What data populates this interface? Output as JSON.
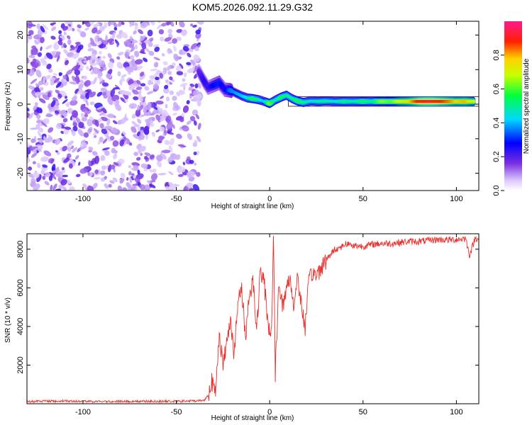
{
  "title": "KOM5.2026.092.11.29.G32",
  "colors": {
    "snr_line": "#e8302c",
    "signal_band_edge": "#111111",
    "noise_purple": "#7b2fe0"
  },
  "chart_data": [
    {
      "type": "heatmap",
      "title": "KOM5.2026.092.11.29.G32",
      "xlabel": "Height of straight line (km)",
      "ylabel": "Frequency (Hz)",
      "xlim": [
        -130,
        112
      ],
      "ylim": [
        -25,
        24
      ],
      "xticks": [
        -100,
        -50,
        0,
        50,
        100
      ],
      "yticks": [
        -20,
        -10,
        0,
        10,
        20
      ],
      "colorbar": {
        "label": "Normalized spectral amplitude",
        "ticks": [
          "0.0",
          "0.2",
          "0.4",
          "0.6",
          "0.8"
        ],
        "range": [
          0,
          1
        ],
        "colormap": "rainbow (violet-blue-cyan-green-yellow-red-magenta)"
      },
      "noise_region": {
        "x_range": [
          -130,
          -37
        ],
        "freq_range": [
          -25,
          24
        ],
        "level": 0.1
      },
      "ridge": [
        [
          -38,
          9.5,
          0.18
        ],
        [
          -35,
          6.5,
          0.25
        ],
        [
          -33,
          4.8,
          0.22
        ],
        [
          -30,
          5.5,
          0.28
        ],
        [
          -27,
          6.2,
          0.3
        ],
        [
          -24,
          4.2,
          0.25
        ],
        [
          -21,
          4.0,
          0.35
        ],
        [
          -18,
          3.2,
          0.38
        ],
        [
          -15,
          2.4,
          0.4
        ],
        [
          -12,
          1.8,
          0.45
        ],
        [
          -9,
          1.6,
          0.55
        ],
        [
          -6,
          1.3,
          0.5
        ],
        [
          -3,
          0.8,
          0.4
        ],
        [
          0,
          0.2,
          0.65
        ],
        [
          3,
          1.2,
          0.45
        ],
        [
          6,
          2.0,
          0.55
        ],
        [
          9,
          2.6,
          0.5
        ],
        [
          12,
          1.6,
          0.48
        ],
        [
          15,
          0.9,
          0.55
        ],
        [
          18,
          0.5,
          0.52
        ],
        [
          22,
          0.9,
          0.45
        ],
        [
          26,
          0.8,
          0.48
        ],
        [
          30,
          0.9,
          0.5
        ],
        [
          35,
          0.8,
          0.45
        ],
        [
          40,
          0.8,
          0.52
        ],
        [
          45,
          0.8,
          0.48
        ],
        [
          50,
          0.8,
          0.55
        ],
        [
          55,
          0.8,
          0.5
        ],
        [
          60,
          0.8,
          0.65
        ],
        [
          65,
          0.8,
          0.6
        ],
        [
          70,
          0.8,
          0.72
        ],
        [
          75,
          0.8,
          0.78
        ],
        [
          80,
          0.8,
          0.9
        ],
        [
          85,
          0.8,
          0.95
        ],
        [
          90,
          0.8,
          0.9
        ],
        [
          95,
          0.8,
          0.85
        ],
        [
          100,
          0.8,
          0.78
        ],
        [
          105,
          0.8,
          0.8
        ],
        [
          110,
          0.8,
          0.7
        ]
      ]
    },
    {
      "type": "line",
      "xlabel": "Height of straight line (km)",
      "ylabel": "SNR (10 * v/v)",
      "xlim": [
        -130,
        112
      ],
      "ylim": [
        0,
        8800
      ],
      "xticks": [
        -100,
        -50,
        0,
        50,
        100
      ],
      "yticks": [
        2000,
        4000,
        6000,
        8000
      ],
      "grid": false,
      "series": [
        {
          "name": "SNR",
          "x": [
            -130,
            -110,
            -90,
            -70,
            -50,
            -40,
            -35,
            -33,
            -31,
            -29,
            -27,
            -25,
            -23,
            -21,
            -19,
            -17,
            -15,
            -13,
            -11,
            -9,
            -7,
            -5,
            -3,
            -1,
            1,
            2,
            3,
            5,
            7,
            9,
            11,
            13,
            15,
            17,
            19,
            21,
            23,
            25,
            27,
            29,
            31,
            33,
            35,
            38,
            41,
            44,
            50,
            55,
            60,
            65,
            70,
            75,
            80,
            85,
            90,
            95,
            100,
            105,
            107,
            110,
            112
          ],
          "y": [
            120,
            140,
            110,
            130,
            120,
            150,
            180,
            450,
            1200,
            400,
            3800,
            1900,
            3200,
            4500,
            2500,
            5200,
            6000,
            3500,
            5500,
            6500,
            3800,
            6800,
            6300,
            4200,
            3600,
            8700,
            1600,
            6400,
            5000,
            6000,
            6500,
            5000,
            6700,
            5000,
            4000,
            6300,
            6800,
            6600,
            7000,
            7300,
            7500,
            7800,
            8000,
            8100,
            8300,
            8200,
            8150,
            8250,
            8300,
            8300,
            8350,
            8400,
            8400,
            8450,
            8500,
            8480,
            8500,
            8550,
            7700,
            8550,
            8600
          ]
        }
      ]
    }
  ]
}
